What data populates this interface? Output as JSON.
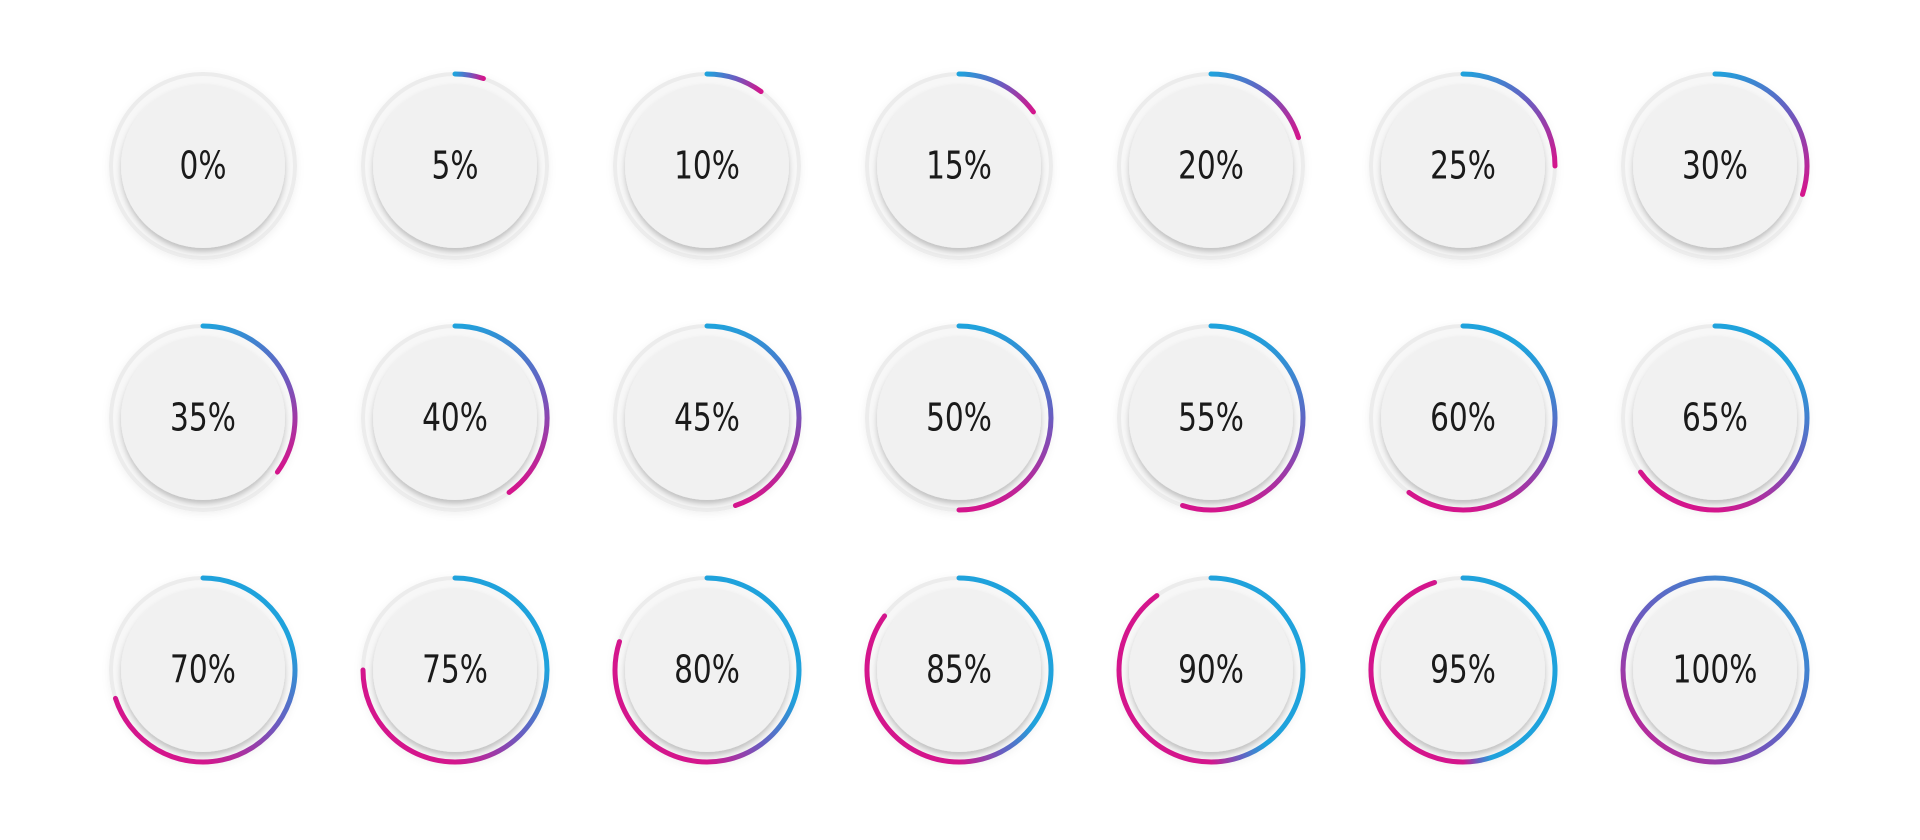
{
  "gradient": {
    "start_color": "#1fa2dc",
    "mid_color": "#6a5cc0",
    "end_color": "#d4158c"
  },
  "track_color": "#ececec",
  "disc_color": "#f1f1f1",
  "text_color": "#1a1a1a",
  "gauges": [
    {
      "percent": 0,
      "label": "0%"
    },
    {
      "percent": 5,
      "label": "5%"
    },
    {
      "percent": 10,
      "label": "10%"
    },
    {
      "percent": 15,
      "label": "15%"
    },
    {
      "percent": 20,
      "label": "20%"
    },
    {
      "percent": 25,
      "label": "25%"
    },
    {
      "percent": 30,
      "label": "30%"
    },
    {
      "percent": 35,
      "label": "35%"
    },
    {
      "percent": 40,
      "label": "40%"
    },
    {
      "percent": 45,
      "label": "45%"
    },
    {
      "percent": 50,
      "label": "50%"
    },
    {
      "percent": 55,
      "label": "55%"
    },
    {
      "percent": 60,
      "label": "60%"
    },
    {
      "percent": 65,
      "label": "65%"
    },
    {
      "percent": 70,
      "label": "70%"
    },
    {
      "percent": 75,
      "label": "75%"
    },
    {
      "percent": 80,
      "label": "80%"
    },
    {
      "percent": 85,
      "label": "85%"
    },
    {
      "percent": 90,
      "label": "90%"
    },
    {
      "percent": 95,
      "label": "95%"
    },
    {
      "percent": 100,
      "label": "100%"
    }
  ]
}
